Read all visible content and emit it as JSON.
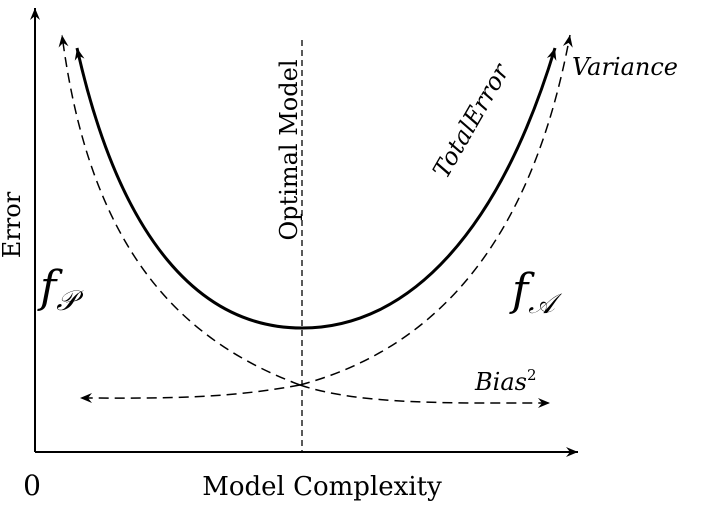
{
  "axes": {
    "y_label": "Error",
    "x_label": "Model Complexity",
    "origin_label": "0"
  },
  "annotations": {
    "optimal_model": "Optimal Model",
    "total_error": "TotalError",
    "variance": "Variance",
    "bias": "Bias",
    "bias_exponent": "2",
    "f_p": "f",
    "f_p_sub": "𝒫",
    "f_a": "f",
    "f_a_sub": "𝒜"
  },
  "colors": {
    "line": "#000000"
  }
}
